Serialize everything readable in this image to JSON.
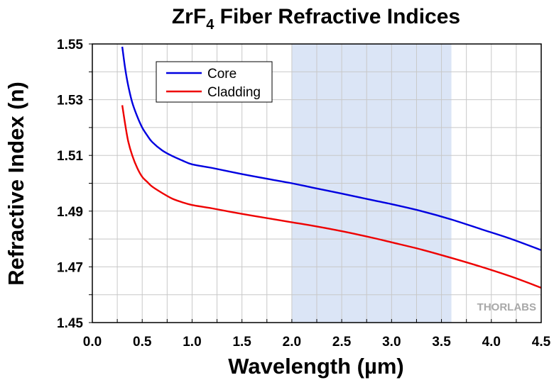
{
  "chart_data": {
    "type": "line",
    "title": {
      "main": "ZrF",
      "subscript": "4",
      "rest": " Fiber Refractive Indices"
    },
    "xlabel": "Wavelength (µm)",
    "ylabel": "Refractive Index (n)",
    "xlim": [
      0.0,
      4.5
    ],
    "ylim": [
      1.45,
      1.55
    ],
    "xticks": [
      "0.0",
      "0.5",
      "1.0",
      "1.5",
      "2.0",
      "2.5",
      "3.0",
      "3.5",
      "4.0",
      "4.5"
    ],
    "yticks": [
      "1.45",
      "1.47",
      "1.49",
      "1.51",
      "1.53",
      "1.55"
    ],
    "grid": true,
    "legend_position": "top-left",
    "highlight_band": {
      "x_start": 2.0,
      "x_end": 3.6,
      "color": "#dbe5f6"
    },
    "watermark": "THORLABS",
    "series": [
      {
        "name": "Core",
        "color": "#0000e0",
        "x": [
          0.3,
          0.33,
          0.36,
          0.4,
          0.45,
          0.5,
          0.55,
          0.6,
          0.7,
          0.8,
          0.9,
          1.0,
          1.2,
          1.5,
          1.8,
          2.0,
          2.2,
          2.5,
          2.8,
          3.0,
          3.3,
          3.6,
          3.9,
          4.2,
          4.5
        ],
        "y": [
          1.549,
          1.541,
          1.535,
          1.529,
          1.524,
          1.52,
          1.5172,
          1.5148,
          1.5118,
          1.5098,
          1.5082,
          1.5068,
          1.5055,
          1.5033,
          1.5013,
          1.5,
          1.4985,
          1.4963,
          1.494,
          1.4925,
          1.49,
          1.487,
          1.4835,
          1.48,
          1.476
        ]
      },
      {
        "name": "Cladding",
        "color": "#ee0000",
        "x": [
          0.3,
          0.33,
          0.36,
          0.4,
          0.45,
          0.5,
          0.55,
          0.6,
          0.7,
          0.8,
          0.9,
          1.0,
          1.2,
          1.5,
          1.8,
          2.0,
          2.2,
          2.5,
          2.8,
          3.0,
          3.3,
          3.6,
          3.9,
          4.2,
          4.5
        ],
        "y": [
          1.528,
          1.521,
          1.515,
          1.51,
          1.5055,
          1.5023,
          1.5005,
          1.4988,
          1.4965,
          1.4945,
          1.4932,
          1.4922,
          1.491,
          1.489,
          1.4872,
          1.486,
          1.4848,
          1.4828,
          1.4805,
          1.4788,
          1.4762,
          1.4732,
          1.47,
          1.4665,
          1.4625
        ]
      }
    ]
  }
}
